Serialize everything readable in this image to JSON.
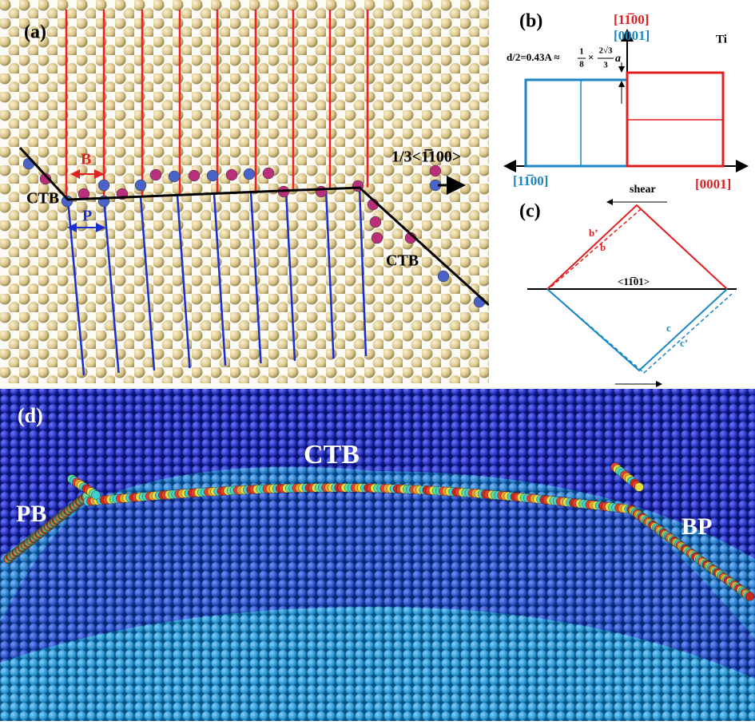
{
  "panel_a": {
    "label": "(a)",
    "burgers_b": "B",
    "burgers_p": "P",
    "ctb_left": "CTB",
    "ctb_right": "CTB",
    "vector": "1/3<1̅100>"
  },
  "panel_b": {
    "label": "(b)",
    "axis_up_red": "[11̅00]",
    "axis_up_blue": "[0001]",
    "element": "Ti",
    "equation_lhs": "d/2=0.43A ≈",
    "frac1_num": "1",
    "frac1_den": "8",
    "times": "×",
    "frac2_num": "2√3",
    "frac2_den": "3",
    "var": "a",
    "axis_left": "[11̅00]",
    "axis_right": "[0001]"
  },
  "panel_c": {
    "label": "(c)",
    "shear": "shear",
    "b_prime": "b’",
    "b": "b",
    "direction": "<11̅01>",
    "c": "c",
    "c_prime": "c’"
  },
  "panel_d": {
    "label": "(d)",
    "ctb": "CTB",
    "pb": "PB",
    "bp": "BP"
  }
}
